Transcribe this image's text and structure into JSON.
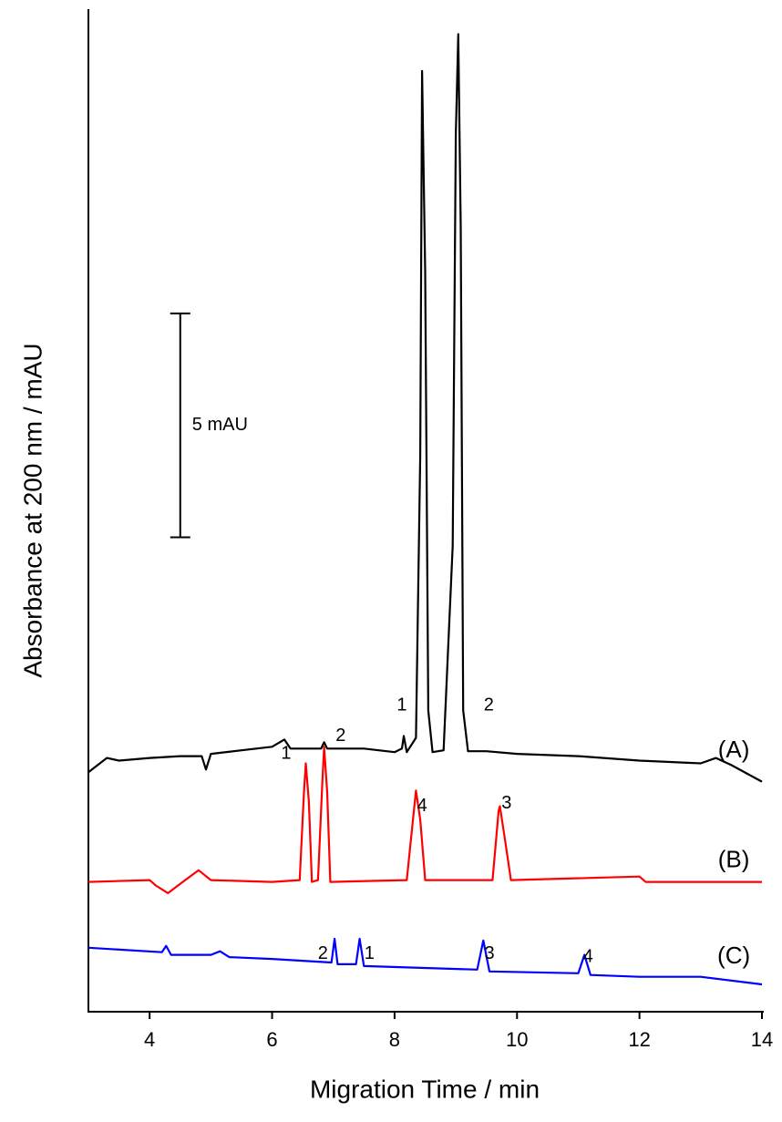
{
  "chart_data": {
    "type": "line",
    "xlabel": "Migration Time / min",
    "ylabel": "Absorbance at 200 nm / mAU",
    "xlim": [
      3,
      14
    ],
    "xticks": [
      4,
      6,
      8,
      10,
      12,
      14
    ],
    "ylim": [
      0,
      22.4
    ],
    "scalebar": {
      "x": 4.5,
      "y": [
        10.6,
        15.6
      ],
      "label": "5 mAU"
    },
    "series": [
      {
        "name": "(A)",
        "color": "#000000",
        "label_x": 13.54,
        "label_y": 5.82,
        "x": [
          3.0,
          3.3,
          3.5,
          4.0,
          4.5,
          4.85,
          4.92,
          5.0,
          5.5,
          6.0,
          6.2,
          6.3,
          6.8,
          6.85,
          6.9,
          7.5,
          8.0,
          8.12,
          8.15,
          8.2,
          8.35,
          8.42,
          8.45,
          8.5,
          8.55,
          8.62,
          8.8,
          8.95,
          9.0,
          9.04,
          9.08,
          9.12,
          9.2,
          9.5,
          10.0,
          11.0,
          12.0,
          13.0,
          13.25,
          13.5,
          14.0
        ],
        "values": [
          5.35,
          5.67,
          5.61,
          5.67,
          5.71,
          5.71,
          5.41,
          5.76,
          5.84,
          5.92,
          6.08,
          5.88,
          5.88,
          6.02,
          5.88,
          5.88,
          5.8,
          5.88,
          6.16,
          5.8,
          6.12,
          12.45,
          21.02,
          16.53,
          6.73,
          5.8,
          5.84,
          10.41,
          19.59,
          21.84,
          17.55,
          6.73,
          5.82,
          5.82,
          5.76,
          5.71,
          5.61,
          5.55,
          5.67,
          5.51,
          5.14
        ]
      },
      {
        "name": "(B)",
        "color": "#ff0000",
        "label_x": 13.54,
        "label_y": 3.37,
        "x": [
          3.0,
          4.0,
          4.1,
          4.3,
          4.5,
          4.8,
          5.0,
          6.0,
          6.45,
          6.52,
          6.55,
          6.6,
          6.65,
          6.75,
          6.82,
          6.85,
          6.9,
          6.95,
          8.2,
          8.3,
          8.35,
          8.42,
          8.5,
          9.6,
          9.7,
          9.72,
          9.8,
          9.9,
          12.0,
          12.1,
          14.0
        ],
        "values": [
          2.9,
          2.94,
          2.82,
          2.65,
          2.86,
          3.16,
          2.94,
          2.9,
          2.94,
          4.9,
          5.55,
          4.69,
          2.9,
          2.94,
          5.1,
          5.92,
          4.9,
          2.9,
          2.94,
          4.29,
          4.94,
          4.29,
          2.94,
          2.94,
          4.49,
          4.59,
          3.88,
          2.94,
          3.02,
          2.9,
          2.9
        ]
      },
      {
        "name": "(C)",
        "color": "#0000ff",
        "label_x": 13.54,
        "label_y": 1.22,
        "x": [
          3.0,
          4.2,
          4.27,
          4.35,
          5.0,
          5.15,
          5.3,
          6.0,
          6.97,
          7.02,
          7.07,
          7.37,
          7.43,
          7.5,
          9.35,
          9.45,
          9.55,
          11.0,
          11.1,
          11.2,
          12.0,
          13.0,
          14.0
        ],
        "values": [
          1.43,
          1.33,
          1.47,
          1.27,
          1.27,
          1.35,
          1.22,
          1.18,
          1.1,
          1.63,
          1.06,
          1.06,
          1.63,
          1.02,
          0.94,
          1.59,
          0.9,
          0.86,
          1.27,
          0.82,
          0.78,
          0.78,
          0.61
        ]
      }
    ],
    "annotations": [
      {
        "text": "1",
        "x": 8.12,
        "y": 6.84,
        "color": "#000000"
      },
      {
        "text": "2",
        "x": 9.54,
        "y": 6.84,
        "color": "#000000"
      },
      {
        "text": "1",
        "x": 6.23,
        "y": 5.76,
        "color": "#000000"
      },
      {
        "text": "2",
        "x": 7.12,
        "y": 6.16,
        "color": "#000000"
      },
      {
        "text": "4",
        "x": 8.45,
        "y": 4.59,
        "color": "#000000"
      },
      {
        "text": "3",
        "x": 9.83,
        "y": 4.65,
        "color": "#000000"
      },
      {
        "text": "2",
        "x": 6.83,
        "y": 1.29,
        "color": "#000000"
      },
      {
        "text": "1",
        "x": 7.59,
        "y": 1.29,
        "color": "#000000"
      },
      {
        "text": "3",
        "x": 9.55,
        "y": 1.29,
        "color": "#000000"
      },
      {
        "text": "4",
        "x": 11.16,
        "y": 1.22,
        "color": "#000000"
      }
    ]
  }
}
